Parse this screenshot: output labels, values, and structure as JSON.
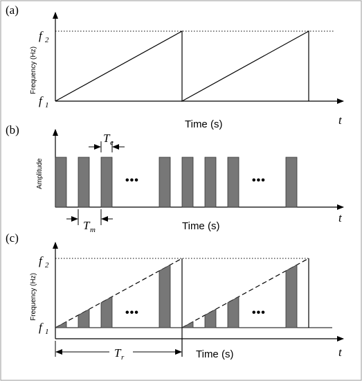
{
  "panels": {
    "a": {
      "label": "(a)",
      "ylabel": "Frequency (Hz)",
      "xlabel": "Time (s)",
      "f2": "f",
      "f2_sub": "2",
      "f1": "f",
      "f1_sub": "1",
      "t": "t"
    },
    "b": {
      "label": "(b)",
      "ylabel": "Amplitude",
      "xlabel": "Time (s)",
      "Te": "T",
      "Te_sub": "e",
      "Tm": "T",
      "Tm_sub": "m",
      "dots": "•••",
      "t": "t"
    },
    "c": {
      "label": "(c)",
      "ylabel": "Frequency (Hz)",
      "xlabel": "Time (s)",
      "f2": "f",
      "f2_sub": "2",
      "f1": "f",
      "f1_sub": "1",
      "Tr": "T",
      "Tr_sub": "r",
      "dots": "•••",
      "t": "t"
    }
  },
  "colors": {
    "bar_fill": "#777777",
    "bar_stroke": "#333333",
    "line": "#000000"
  }
}
